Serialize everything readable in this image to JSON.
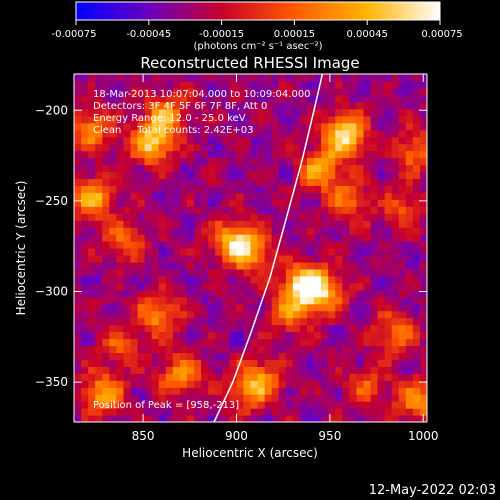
{
  "chart_data": {
    "type": "heatmap",
    "title": "Reconstructed RHESSI Image",
    "xlabel": "Heliocentric X (arcsec)",
    "ylabel": "Heliocentric Y (arcsec)",
    "xlim": [
      813,
      1002
    ],
    "ylim": [
      -372,
      -180
    ],
    "x_ticks": [
      850,
      900,
      950,
      1000
    ],
    "y_ticks": [
      -200,
      -250,
      -300,
      -350
    ],
    "grid": false,
    "colorbar": {
      "min": -0.00075,
      "max": 0.00075,
      "tick_values": [
        -0.00075,
        -0.00045,
        -0.00015,
        0.00015,
        0.00045,
        0.00075
      ],
      "tick_labels": [
        "-0.00075",
        "-0.00045",
        "-0.00015",
        "0.00015",
        "0.00045",
        "0.00075"
      ],
      "unit_label": "(photons cm⁻² s⁻¹ asec⁻²)",
      "colors": [
        "#0000ff",
        "#6a00c0",
        "#c8002a",
        "#ff5a00",
        "#ffb400",
        "#ffffff"
      ]
    },
    "annotations": [
      "18-Mar-2013 10:07:04.000 to 10:09:04.000",
      "Detectors: 3F 4F 5F 6F 7F 8F, Att 0",
      "Energy Range: 12.0 - 25.0 keV",
      "Clean     Total counts: 2.42E+03"
    ],
    "peak_label": "Position of Peak = [958,-213]",
    "sources": [
      {
        "x": 958,
        "y": -213,
        "value": 0.00075
      },
      {
        "x": 945,
        "y": -232,
        "value": 0.0005
      },
      {
        "x": 960,
        "y": -250,
        "value": 0.0003
      },
      {
        "x": 936,
        "y": -296,
        "value": 0.00068
      },
      {
        "x": 946,
        "y": -300,
        "value": 0.0005
      },
      {
        "x": 928,
        "y": -312,
        "value": 0.0003
      },
      {
        "x": 898,
        "y": -272,
        "value": 0.0005
      },
      {
        "x": 908,
        "y": -278,
        "value": 0.0004
      },
      {
        "x": 855,
        "y": -218,
        "value": 0.00062
      },
      {
        "x": 862,
        "y": -202,
        "value": 0.0004
      },
      {
        "x": 822,
        "y": -210,
        "value": 0.0004
      },
      {
        "x": 823,
        "y": -248,
        "value": 0.0005
      },
      {
        "x": 840,
        "y": -272,
        "value": 0.0003
      },
      {
        "x": 858,
        "y": -313,
        "value": 0.0004
      },
      {
        "x": 838,
        "y": -330,
        "value": 0.0002
      },
      {
        "x": 828,
        "y": -356,
        "value": 0.0005
      },
      {
        "x": 870,
        "y": -346,
        "value": 0.0004
      },
      {
        "x": 905,
        "y": -356,
        "value": 0.0002
      },
      {
        "x": 913,
        "y": -348,
        "value": 0.00035
      },
      {
        "x": 995,
        "y": -222,
        "value": 0.0003
      },
      {
        "x": 990,
        "y": -254,
        "value": 0.0002
      },
      {
        "x": 985,
        "y": -322,
        "value": 0.0003
      },
      {
        "x": 997,
        "y": -360,
        "value": 0.0004
      },
      {
        "x": 970,
        "y": -352,
        "value": 0.0002
      }
    ],
    "limb_curve": [
      {
        "x": 888,
        "y": -372
      },
      {
        "x": 898,
        "y": -350
      },
      {
        "x": 908,
        "y": -322
      },
      {
        "x": 918,
        "y": -292
      },
      {
        "x": 926,
        "y": -262
      },
      {
        "x": 935,
        "y": -228
      },
      {
        "x": 942,
        "y": -198
      },
      {
        "x": 946,
        "y": -180
      }
    ]
  },
  "footer": {
    "timestamp": "12-May-2022 02:03"
  }
}
